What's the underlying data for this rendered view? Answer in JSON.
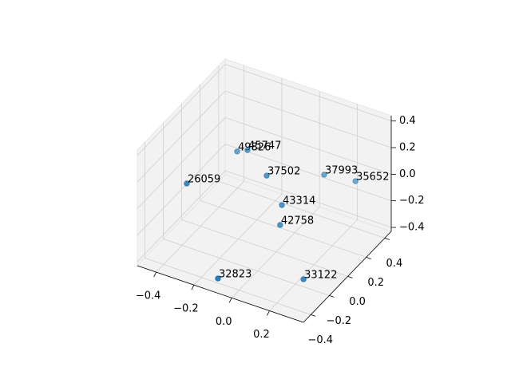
{
  "chart_data": {
    "type": "scatter3d",
    "xlim": [
      -0.5,
      0.38
    ],
    "ylim": [
      -0.48,
      0.47
    ],
    "zlim": [
      -0.43,
      0.44
    ],
    "xticks": [
      {
        "value": -0.4,
        "label": "−0.4"
      },
      {
        "value": -0.2,
        "label": "−0.2"
      },
      {
        "value": 0,
        "label": "0.0"
      },
      0.2
    ],
    "yticks": [
      {
        "value": -0.4,
        "label": "−0.4"
      },
      {
        "value": -0.2,
        "label": "−0.2"
      },
      {
        "value": 0,
        "label": "0.0"
      },
      0.2,
      0.4
    ],
    "zticks": [
      {
        "value": -0.4,
        "label": "−0.4"
      },
      {
        "value": -0.2,
        "label": "−0.2"
      },
      {
        "value": 0,
        "label": "0.0"
      },
      0.2,
      0.4
    ],
    "grid": true,
    "series": [
      {
        "color": "#1f77b4",
        "x": [
          -0.319,
          -0.261,
          -0.064,
          0.117,
          0.244,
          -0.352,
          0.043,
          0.046,
          -0.085,
          0.259
        ],
        "y": [
          0.23,
          0.224,
          0.029,
          0.281,
          0.36,
          -0.247,
          -0.025,
          -0.05,
          -0.455,
          -0.232
        ],
        "z": [
          0.005,
          0.048,
          0.092,
          0.005,
          -0.039,
          0.092,
          -0.039,
          -0.169,
          -0.343,
          -0.343
        ],
        "labels": [
          "49826",
          "45747",
          "37502",
          "37993",
          "35652",
          "26059",
          "43314",
          "42758",
          "32823",
          "33122"
        ]
      }
    ]
  }
}
